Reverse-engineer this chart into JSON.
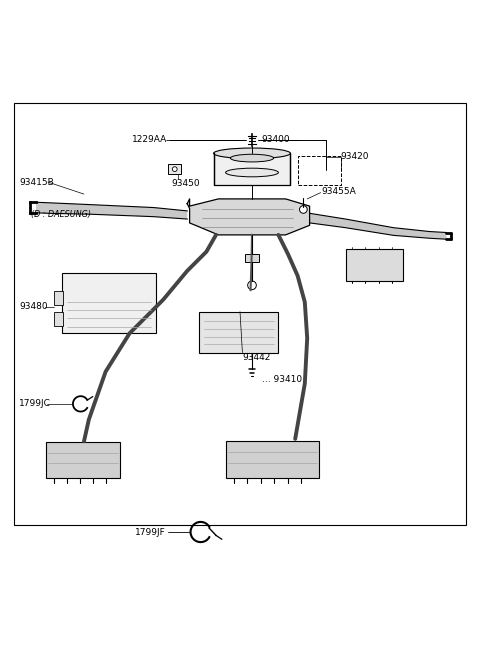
{
  "bg_color": "#ffffff",
  "line_color": "#000000",
  "text_color": "#000000",
  "figsize": [
    4.8,
    6.57
  ],
  "dpi": 100,
  "outer_border": [
    0.03,
    0.09,
    0.94,
    0.88
  ]
}
